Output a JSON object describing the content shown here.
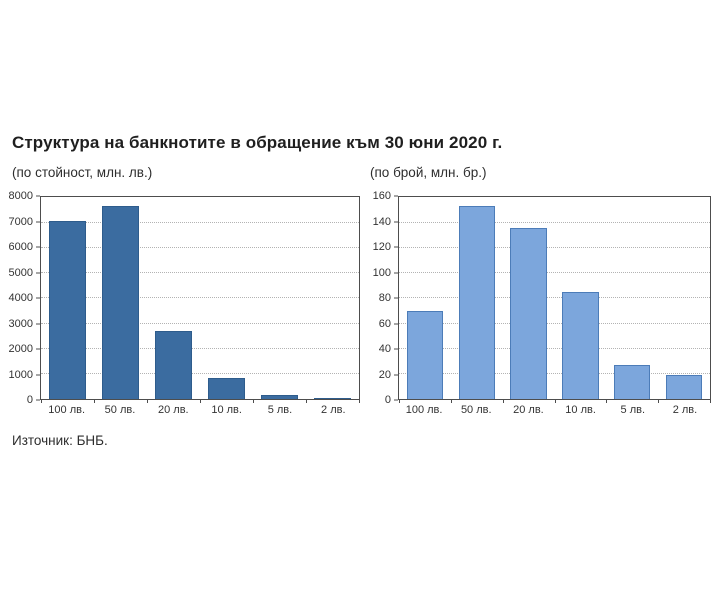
{
  "page": {
    "title": "Структура на банкнотите в обращение към 30 юни 2020 г.",
    "source": "Източник: БНБ."
  },
  "chart_data": [
    {
      "type": "bar",
      "title": "(по стойност, млн. лв.)",
      "categories": [
        "100 лв.",
        "50 лв.",
        "20 лв.",
        "10 лв.",
        "5 лв.",
        "2 лв."
      ],
      "values": [
        7050,
        7650,
        2720,
        850,
        150,
        50
      ],
      "xlabel": "",
      "ylabel": "",
      "ylim": [
        0,
        8000
      ],
      "ytick_step": 1000,
      "grid": "dotted horizontal",
      "legend": "none",
      "bar_color": "#3b6ca0",
      "bar_border": "#2e5c8c"
    },
    {
      "type": "bar",
      "title": "(по брой, млн. бр.)",
      "categories": [
        "100 лв.",
        "50 лв.",
        "20 лв.",
        "10 лв.",
        "5 лв.",
        "2 лв."
      ],
      "values": [
        70,
        153,
        136,
        85,
        27,
        19
      ],
      "xlabel": "",
      "ylabel": "",
      "ylim": [
        0,
        160
      ],
      "ytick_step": 20,
      "grid": "dotted horizontal",
      "legend": "none",
      "bar_color": "#7ca6dc",
      "bar_border": "#4c7cb8"
    }
  ]
}
